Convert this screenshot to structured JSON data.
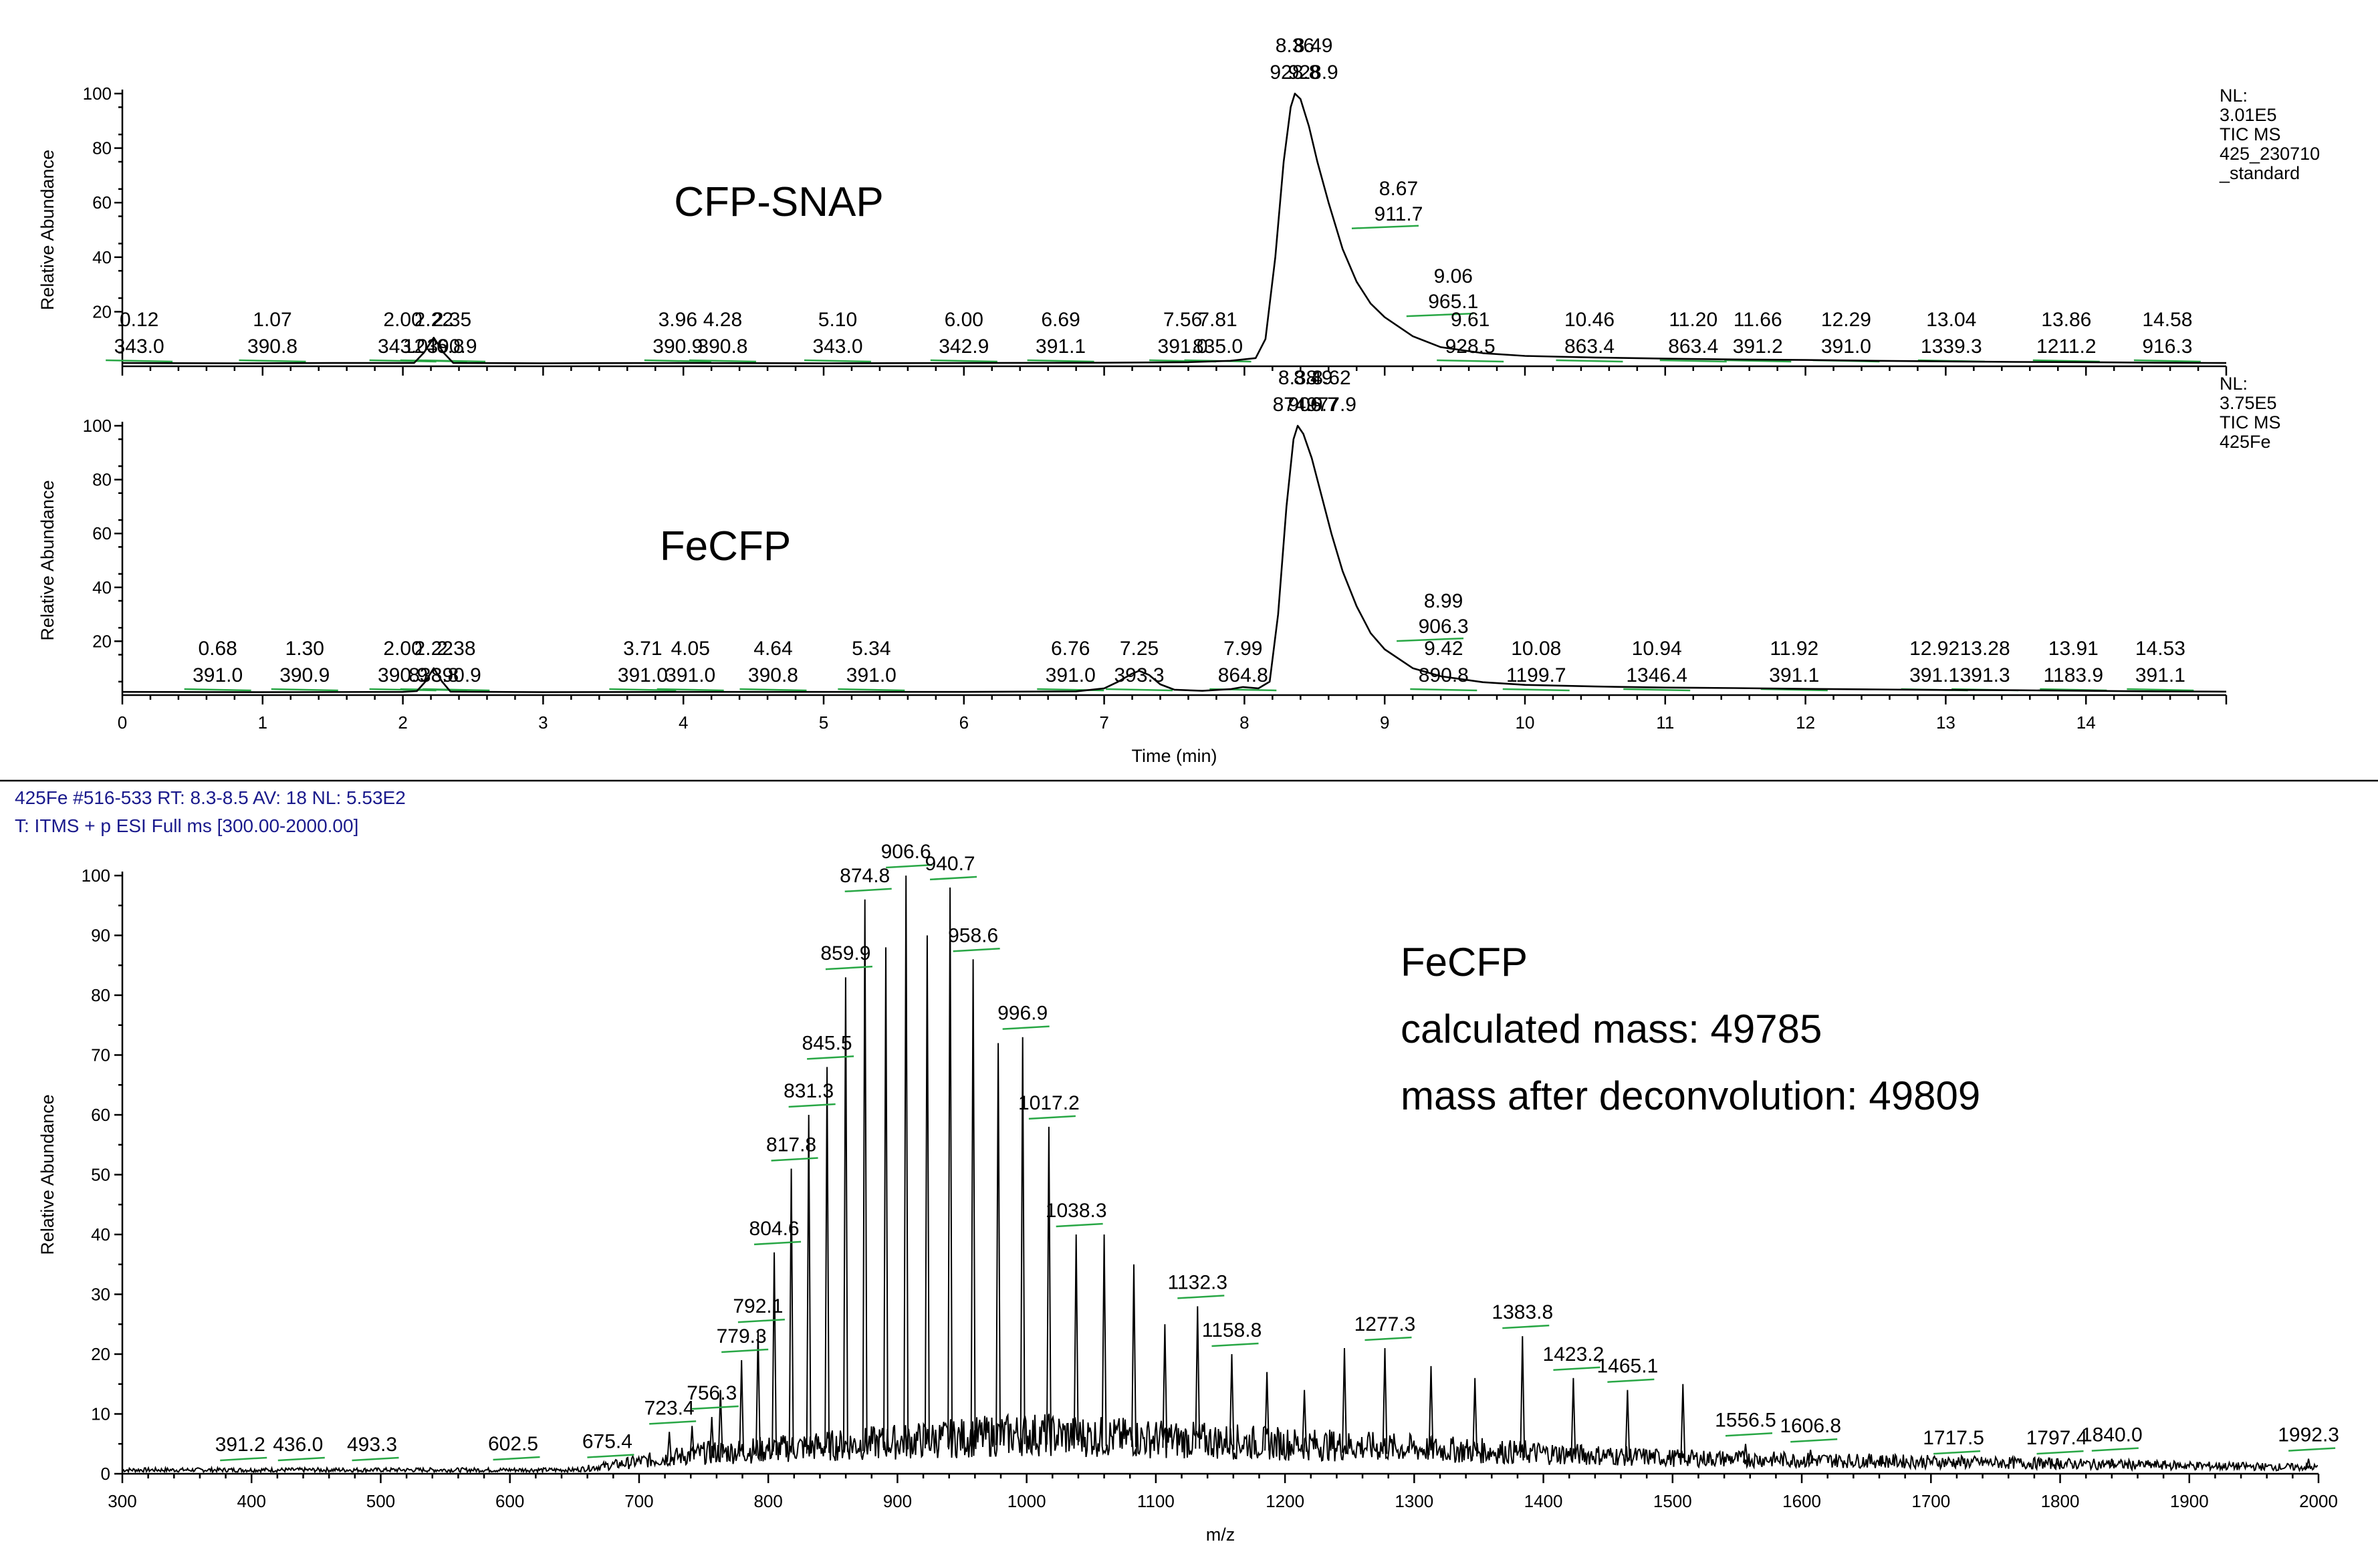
{
  "header": {
    "line1": "425Fe #516-533   RT: 8.3-8.5   AV: 18   NL: 5.53E2",
    "line2": "T: ITMS + p ESI Full ms [300.00-2000.00]"
  },
  "chart_data": [
    {
      "type": "line",
      "ylabel": "Relative Abundance",
      "xlim": [
        0,
        15
      ],
      "ylim": [
        0,
        100
      ],
      "yticks": [
        20,
        40,
        60,
        80,
        100
      ],
      "sample_title": "CFP-SNAP",
      "info": [
        "NL:",
        "3.01E5",
        "TIC  MS",
        "425_230710",
        "_standard"
      ],
      "peaks": [
        {
          "rt": 0.12,
          "label_top": "0.12",
          "label_bottom": "343.0"
        },
        {
          "rt": 1.07,
          "label_top": "1.07",
          "label_bottom": "390.8"
        },
        {
          "rt": 2.0,
          "label_top": "2.00",
          "label_bottom": "343.0"
        },
        {
          "rt": 2.22,
          "label_top": "2.22",
          "label_bottom": "1246.8"
        },
        {
          "rt": 2.35,
          "label_top": "2.35",
          "label_bottom": "390.9"
        },
        {
          "rt": 3.96,
          "label_top": "3.96",
          "label_bottom": "390.9"
        },
        {
          "rt": 4.28,
          "label_top": "4.28",
          "label_bottom": "390.8"
        },
        {
          "rt": 5.1,
          "label_top": "5.10",
          "label_bottom": "343.0"
        },
        {
          "rt": 6.0,
          "label_top": "6.00",
          "label_bottom": "342.9"
        },
        {
          "rt": 6.69,
          "label_top": "6.69",
          "label_bottom": "391.1"
        },
        {
          "rt": 7.56,
          "label_top": "7.56",
          "label_bottom": "391.0"
        },
        {
          "rt": 7.81,
          "label_top": "7.81",
          "label_bottom": "835.0"
        },
        {
          "rt": 8.36,
          "label_top": "8.36",
          "label_bottom": "928.8"
        },
        {
          "rt": 8.49,
          "label_top": "8.49",
          "label_bottom": "928.9"
        },
        {
          "rt": 8.67,
          "label_top": "8.67",
          "label_bottom": "911.7"
        },
        {
          "rt": 9.06,
          "label_top": "9.06",
          "label_bottom": "965.1"
        },
        {
          "rt": 9.61,
          "label_top": "9.61",
          "label_bottom": "928.5"
        },
        {
          "rt": 10.46,
          "label_top": "10.46",
          "label_bottom": "863.4"
        },
        {
          "rt": 11.2,
          "label_top": "11.20",
          "label_bottom": "863.4"
        },
        {
          "rt": 11.66,
          "label_top": "11.66",
          "label_bottom": "391.2"
        },
        {
          "rt": 12.29,
          "label_top": "12.29",
          "label_bottom": "391.0"
        },
        {
          "rt": 13.04,
          "label_top": "13.04",
          "label_bottom": "1339.3"
        },
        {
          "rt": 13.86,
          "label_top": "13.86",
          "label_bottom": "1211.2"
        },
        {
          "rt": 14.58,
          "label_top": "14.58",
          "label_bottom": "916.3"
        }
      ],
      "trace": [
        [
          0,
          1.2
        ],
        [
          0.8,
          1.1
        ],
        [
          1.5,
          1.2
        ],
        [
          2.08,
          1.2
        ],
        [
          2.15,
          5
        ],
        [
          2.22,
          10.5
        ],
        [
          2.29,
          5
        ],
        [
          2.36,
          1.2
        ],
        [
          3,
          1.1
        ],
        [
          4,
          1.2
        ],
        [
          5,
          1.1
        ],
        [
          6,
          1.2
        ],
        [
          7,
          1.3
        ],
        [
          7.6,
          1.5
        ],
        [
          7.9,
          2
        ],
        [
          8.08,
          3
        ],
        [
          8.15,
          10
        ],
        [
          8.22,
          40
        ],
        [
          8.28,
          75
        ],
        [
          8.33,
          95
        ],
        [
          8.36,
          100
        ],
        [
          8.4,
          98
        ],
        [
          8.46,
          88
        ],
        [
          8.52,
          75
        ],
        [
          8.6,
          60
        ],
        [
          8.7,
          43
        ],
        [
          8.8,
          31
        ],
        [
          8.9,
          23
        ],
        [
          9.0,
          18
        ],
        [
          9.2,
          11
        ],
        [
          9.4,
          7
        ],
        [
          9.7,
          4.8
        ],
        [
          10,
          3.8
        ],
        [
          10.5,
          3.2
        ],
        [
          11,
          2.8
        ],
        [
          11.5,
          2.5
        ],
        [
          12,
          2.3
        ],
        [
          12.5,
          2.0
        ],
        [
          13,
          1.8
        ],
        [
          13.5,
          1.6
        ],
        [
          14,
          1.5
        ],
        [
          14.5,
          1.3
        ],
        [
          15,
          1.2
        ]
      ]
    },
    {
      "type": "line",
      "xlabel": "Time (min)",
      "ylabel": "Relative Abundance",
      "xlim": [
        0,
        15
      ],
      "ylim": [
        0,
        100
      ],
      "xticks": [
        0,
        1,
        2,
        3,
        4,
        5,
        6,
        7,
        8,
        9,
        10,
        11,
        12,
        13,
        14
      ],
      "yticks": [
        20,
        40,
        60,
        80,
        100
      ],
      "sample_title": "FeCFP",
      "info": [
        "NL:",
        "3.75E5",
        "TIC  MS",
        "425Fe"
      ],
      "peaks": [
        {
          "rt": 0.68,
          "label_top": "0.68",
          "label_bottom": "391.0"
        },
        {
          "rt": 1.3,
          "label_top": "1.30",
          "label_bottom": "390.9"
        },
        {
          "rt": 2.0,
          "label_top": "2.00",
          "label_bottom": "390.9"
        },
        {
          "rt": 2.22,
          "label_top": "2.22",
          "label_bottom": "838.8"
        },
        {
          "rt": 2.38,
          "label_top": "2.38",
          "label_bottom": "390.9"
        },
        {
          "rt": 3.71,
          "label_top": "3.71",
          "label_bottom": "391.0"
        },
        {
          "rt": 4.05,
          "label_top": "4.05",
          "label_bottom": "391.0"
        },
        {
          "rt": 4.64,
          "label_top": "4.64",
          "label_bottom": "390.8"
        },
        {
          "rt": 5.34,
          "label_top": "5.34",
          "label_bottom": "391.0"
        },
        {
          "rt": 6.76,
          "label_top": "6.76",
          "label_bottom": "391.0"
        },
        {
          "rt": 7.25,
          "label_top": "7.25",
          "label_bottom": "393.3"
        },
        {
          "rt": 7.99,
          "label_top": "7.99",
          "label_bottom": "864.8"
        },
        {
          "rt": 8.38,
          "label_top": "8.38",
          "label_bottom": "874.9"
        },
        {
          "rt": 8.49,
          "label_top": "8.49",
          "label_bottom": "906.7"
        },
        {
          "rt": 8.62,
          "label_top": "8.62",
          "label_bottom": "977.9"
        },
        {
          "rt": 8.99,
          "label_top": "8.99",
          "label_bottom": "906.3"
        },
        {
          "rt": 9.42,
          "label_top": "9.42",
          "label_bottom": "890.8"
        },
        {
          "rt": 10.08,
          "label_top": "10.08",
          "label_bottom": "1199.7"
        },
        {
          "rt": 10.94,
          "label_top": "10.94",
          "label_bottom": "1346.4"
        },
        {
          "rt": 11.92,
          "label_top": "11.92",
          "label_bottom": "391.1"
        },
        {
          "rt": 12.92,
          "label_top": "12.92",
          "label_bottom": "391.1"
        },
        {
          "rt": 13.28,
          "label_top": "13.28",
          "label_bottom": "391.3"
        },
        {
          "rt": 13.91,
          "label_top": "13.91",
          "label_bottom": "1183.9"
        },
        {
          "rt": 14.53,
          "label_top": "14.53",
          "label_bottom": "391.1"
        }
      ],
      "trace": [
        [
          0,
          1.2
        ],
        [
          1,
          1.1
        ],
        [
          2,
          1.2
        ],
        [
          2.1,
          1.5
        ],
        [
          2.16,
          5
        ],
        [
          2.22,
          10
        ],
        [
          2.28,
          5
        ],
        [
          2.34,
          1.3
        ],
        [
          3,
          1.1
        ],
        [
          4,
          1.2
        ],
        [
          5,
          1.2
        ],
        [
          6,
          1.2
        ],
        [
          6.8,
          1.4
        ],
        [
          7.0,
          2.5
        ],
        [
          7.1,
          5
        ],
        [
          7.2,
          8
        ],
        [
          7.25,
          9
        ],
        [
          7.32,
          7.5
        ],
        [
          7.4,
          4
        ],
        [
          7.5,
          2
        ],
        [
          7.7,
          1.6
        ],
        [
          7.9,
          2.2
        ],
        [
          7.99,
          3
        ],
        [
          8.1,
          2.5
        ],
        [
          8.18,
          5
        ],
        [
          8.24,
          30
        ],
        [
          8.3,
          70
        ],
        [
          8.35,
          95
        ],
        [
          8.38,
          100
        ],
        [
          8.42,
          97
        ],
        [
          8.48,
          88
        ],
        [
          8.55,
          74
        ],
        [
          8.62,
          60
        ],
        [
          8.7,
          46
        ],
        [
          8.8,
          33
        ],
        [
          8.9,
          23
        ],
        [
          9.0,
          17
        ],
        [
          9.2,
          10
        ],
        [
          9.4,
          7
        ],
        [
          9.7,
          4.8
        ],
        [
          10,
          3.8
        ],
        [
          10.5,
          3.2
        ],
        [
          11,
          2.8
        ],
        [
          11.5,
          2.6
        ],
        [
          12,
          2.3
        ],
        [
          12.5,
          2.1
        ],
        [
          13,
          1.9
        ],
        [
          13.5,
          1.8
        ],
        [
          14,
          1.6
        ],
        [
          14.5,
          1.4
        ],
        [
          15,
          1.3
        ]
      ]
    },
    {
      "type": "line",
      "xlabel": "m/z",
      "ylabel": "Relative Abundance",
      "xlim": [
        300,
        2000
      ],
      "ylim": [
        0,
        100
      ],
      "xticks": [
        300,
        400,
        500,
        600,
        700,
        800,
        900,
        1000,
        1100,
        1200,
        1300,
        1400,
        1500,
        1600,
        1700,
        1800,
        1900,
        2000
      ],
      "yticks": [
        0,
        10,
        20,
        30,
        40,
        50,
        60,
        70,
        80,
        90,
        100
      ],
      "sticks": [
        [
          723.4,
          7
        ],
        [
          741,
          8
        ],
        [
          756.3,
          9.5
        ],
        [
          763,
          14
        ],
        [
          779.3,
          19
        ],
        [
          792.1,
          24
        ],
        [
          804.6,
          37
        ],
        [
          817.8,
          51
        ],
        [
          831.3,
          60
        ],
        [
          845.5,
          68
        ],
        [
          859.9,
          83
        ],
        [
          874.8,
          96
        ],
        [
          891,
          88
        ],
        [
          906.6,
          100
        ],
        [
          923,
          90
        ],
        [
          940.7,
          98
        ],
        [
          958.6,
          86
        ],
        [
          978,
          72
        ],
        [
          996.9,
          73
        ],
        [
          1017.2,
          58
        ],
        [
          1038.3,
          40
        ],
        [
          1060,
          40
        ],
        [
          1083,
          35
        ],
        [
          1107,
          25
        ],
        [
          1132.3,
          28
        ],
        [
          1158.8,
          20
        ],
        [
          1186,
          17
        ],
        [
          1215,
          14
        ],
        [
          1246,
          21
        ],
        [
          1277.3,
          21
        ],
        [
          1313,
          18
        ],
        [
          1347,
          16
        ],
        [
          1383.8,
          23
        ],
        [
          1423.2,
          16
        ],
        [
          1465.1,
          14
        ],
        [
          1508,
          15
        ],
        [
          1556.5,
          5
        ],
        [
          1606.8,
          4
        ],
        [
          1661,
          3
        ],
        [
          1717.5,
          2
        ],
        [
          1797.4,
          2
        ],
        [
          1840.0,
          2.5
        ],
        [
          1992.3,
          2.5
        ]
      ],
      "peak_labels": [
        {
          "x": 391.2,
          "y": 0.9,
          "label": "391.2"
        },
        {
          "x": 436.0,
          "y": 0.9,
          "label": "436.0"
        },
        {
          "x": 493.3,
          "y": 0.9,
          "label": "493.3"
        },
        {
          "x": 602.5,
          "y": 1.0,
          "label": "602.5"
        },
        {
          "x": 675.4,
          "y": 1.4,
          "label": "675.4"
        },
        {
          "x": 723.4,
          "y": 7,
          "label": "723.4"
        },
        {
          "x": 756.3,
          "y": 9.5,
          "label": "756.3"
        },
        {
          "x": 779.3,
          "y": 19,
          "label": "779.3"
        },
        {
          "x": 792.1,
          "y": 24,
          "label": "792.1"
        },
        {
          "x": 804.6,
          "y": 37,
          "label": "804.6"
        },
        {
          "x": 817.8,
          "y": 51,
          "label": "817.8"
        },
        {
          "x": 831.3,
          "y": 60,
          "label": "831.3"
        },
        {
          "x": 845.5,
          "y": 68,
          "label": "845.5"
        },
        {
          "x": 859.9,
          "y": 83,
          "label": "859.9"
        },
        {
          "x": 874.8,
          "y": 96,
          "label": "874.8"
        },
        {
          "x": 906.6,
          "y": 100,
          "label": "906.6"
        },
        {
          "x": 940.7,
          "y": 98,
          "label": "940.7"
        },
        {
          "x": 958.6,
          "y": 86,
          "label": "958.6"
        },
        {
          "x": 996.9,
          "y": 73,
          "label": "996.9"
        },
        {
          "x": 1017.2,
          "y": 58,
          "label": "1017.2"
        },
        {
          "x": 1038.3,
          "y": 40,
          "label": "1038.3"
        },
        {
          "x": 1132.3,
          "y": 28,
          "label": "1132.3"
        },
        {
          "x": 1158.8,
          "y": 20,
          "label": "1158.8"
        },
        {
          "x": 1277.3,
          "y": 21,
          "label": "1277.3"
        },
        {
          "x": 1383.8,
          "y": 23,
          "label": "1383.8"
        },
        {
          "x": 1423.2,
          "y": 16,
          "label": "1423.2"
        },
        {
          "x": 1465.1,
          "y": 14,
          "label": "1465.1"
        },
        {
          "x": 1556.5,
          "y": 5,
          "label": "1556.5"
        },
        {
          "x": 1606.8,
          "y": 4,
          "label": "1606.8"
        },
        {
          "x": 1717.5,
          "y": 2,
          "label": "1717.5"
        },
        {
          "x": 1797.4,
          "y": 2,
          "label": "1797.4"
        },
        {
          "x": 1840.0,
          "y": 2.5,
          "label": "1840.0"
        },
        {
          "x": 1992.3,
          "y": 2.5,
          "label": "1992.3"
        }
      ],
      "annotations": [
        "FeCFP",
        "calculated mass: 49785",
        "mass after deconvolution: 49809"
      ]
    }
  ]
}
